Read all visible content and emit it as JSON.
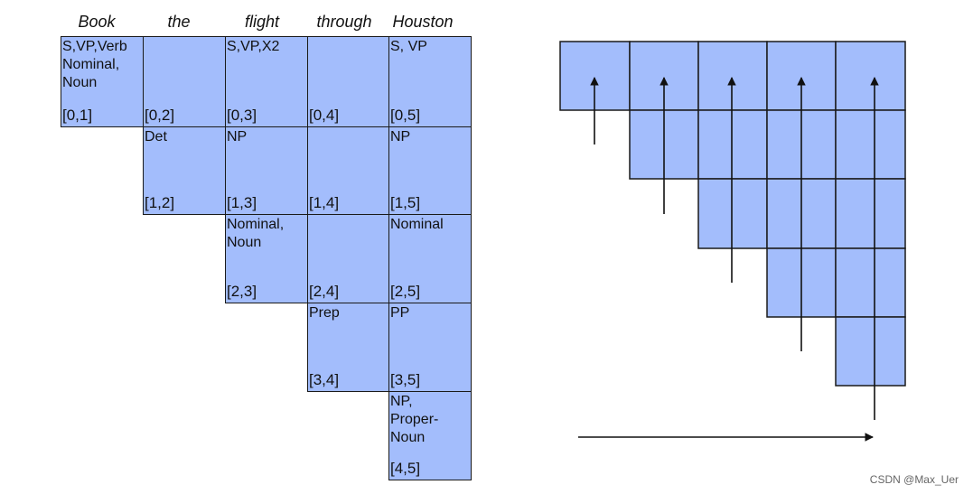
{
  "words": [
    "Book",
    "the",
    "flight",
    "through",
    "Houston"
  ],
  "table": [
    {
      "row": 0,
      "col": 1,
      "tags": "S,VP,Verb\nNominal,\nNoun",
      "span": "[0,1]"
    },
    {
      "row": 0,
      "col": 2,
      "tags": "",
      "span": "[0,2]"
    },
    {
      "row": 0,
      "col": 3,
      "tags": "S,VP,X2",
      "span": "[0,3]"
    },
    {
      "row": 0,
      "col": 4,
      "tags": "",
      "span": "[0,4]"
    },
    {
      "row": 0,
      "col": 5,
      "tags": "S, VP",
      "span": "[0,5]"
    },
    {
      "row": 1,
      "col": 2,
      "tags": "Det",
      "span": "[1,2]"
    },
    {
      "row": 1,
      "col": 3,
      "tags": "NP",
      "span": "[1,3]"
    },
    {
      "row": 1,
      "col": 4,
      "tags": "",
      "span": "[1,4]"
    },
    {
      "row": 1,
      "col": 5,
      "tags": "NP",
      "span": "[1,5]"
    },
    {
      "row": 2,
      "col": 3,
      "tags": "Nominal,\nNoun",
      "span": "[2,3]"
    },
    {
      "row": 2,
      "col": 4,
      "tags": "",
      "span": "[2,4]"
    },
    {
      "row": 2,
      "col": 5,
      "tags": "Nominal",
      "span": "[2,5]"
    },
    {
      "row": 3,
      "col": 4,
      "tags": "Prep",
      "span": "[3,4]"
    },
    {
      "row": 3,
      "col": 5,
      "tags": "PP",
      "span": "[3,5]"
    },
    {
      "row": 4,
      "col": 5,
      "tags": "NP,\nProper-\nNoun",
      "span": "[4,5]"
    }
  ],
  "watermark": "CSDN @Max_Uer",
  "colors": {
    "cell_fill": "#a3bdfc",
    "line": "#1a1a1a"
  },
  "right_grid": {
    "size": 5,
    "column_arrows": 5,
    "bottom_arrow_direction": "right"
  }
}
